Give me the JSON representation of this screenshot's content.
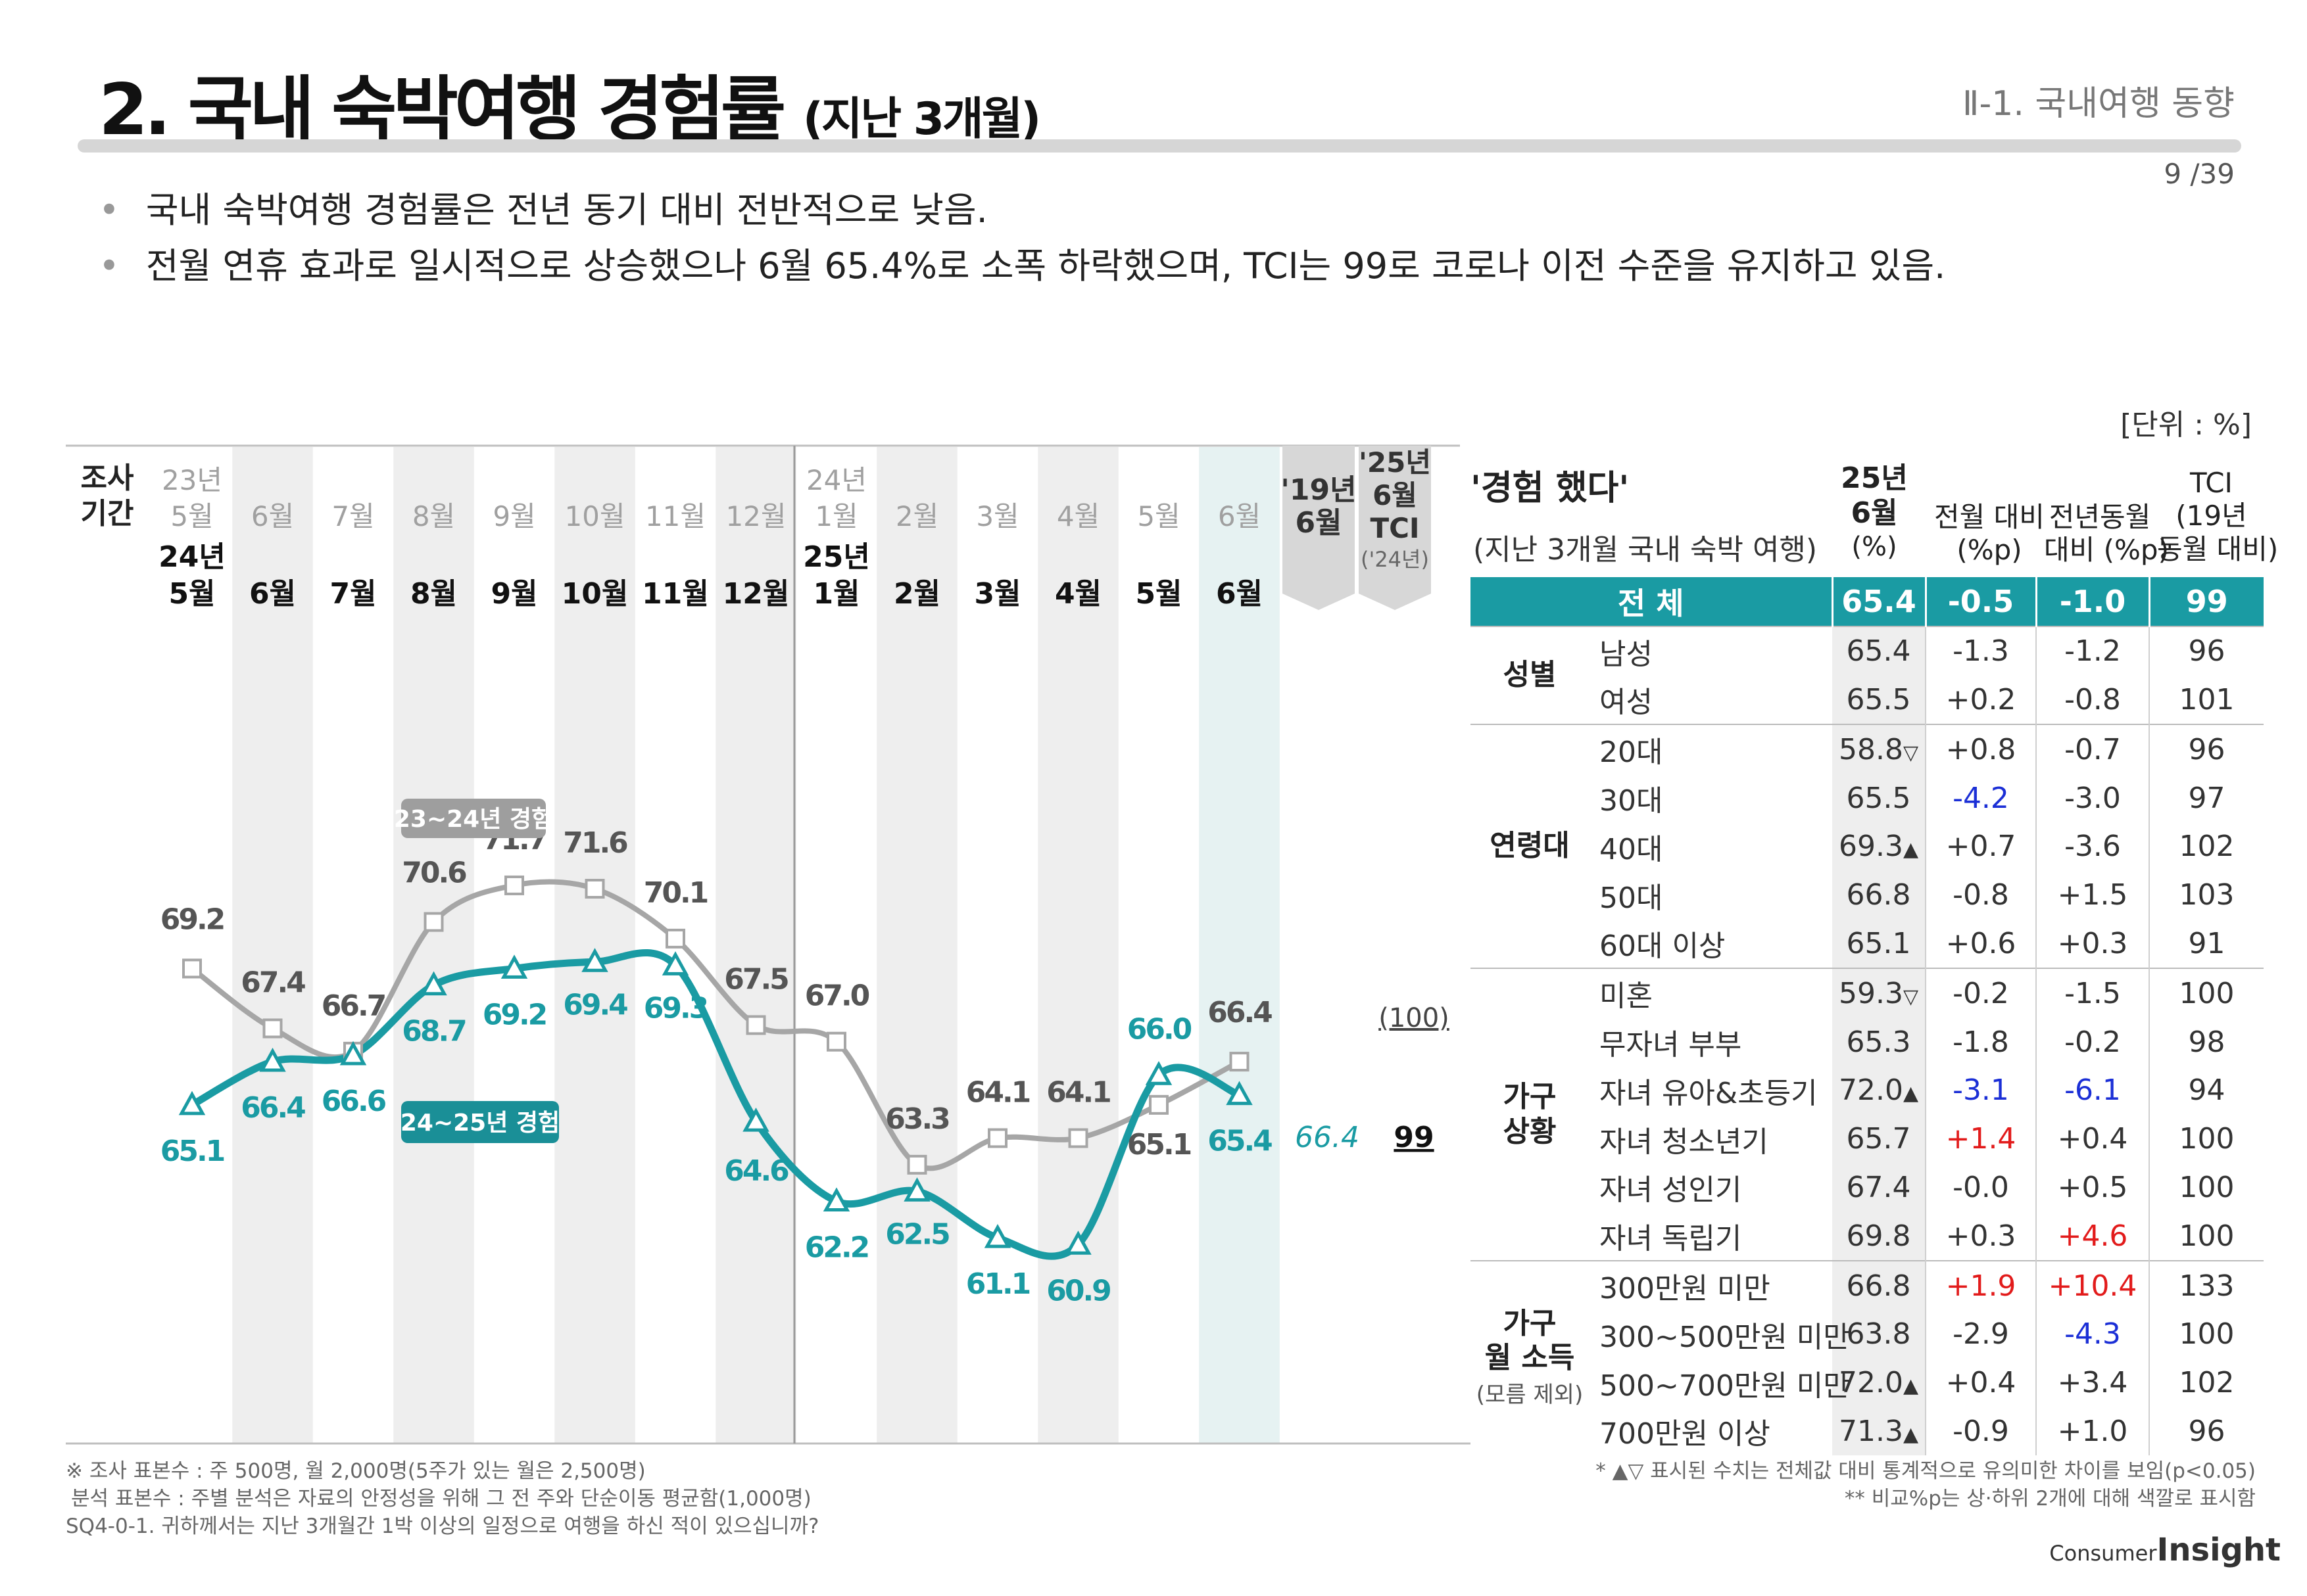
{
  "header": {
    "title": "2. 국내 숙박여행 경험률",
    "title_sub": "(지난 3개월)",
    "section": "Ⅱ-1. 국내여행 동향",
    "page": "9 /39"
  },
  "bullets": [
    "국내 숙박여행 경험률은 전년 동기 대비 전반적으로 낮음.",
    "전월 연휴 효과로 일시적으로 상승했으나 6월 65.4%로 소폭 하락했으며, TCI는 99로 코로나 이전 수준을 유지하고 있음."
  ],
  "unit": "[단위 : %]",
  "axis": {
    "period_label_1": "조사",
    "period_label_2": "기간",
    "prev_year_months": [
      "23년 5월",
      "6월",
      "7월",
      "8월",
      "9월",
      "10월",
      "11월",
      "12월",
      "24년 1월",
      "2월",
      "3월",
      "4월",
      "5월",
      "6월"
    ],
    "curr_year_months": [
      "24년 5월",
      "6월",
      "7월",
      "8월",
      "9월",
      "10월",
      "11월",
      "12월",
      "25년 1월",
      "2월",
      "3월",
      "4월",
      "5월",
      "6월"
    ],
    "ref_col_1": "'19년 6월",
    "ref_col_2": "'25년 6월 TCI",
    "ref_col_2_sub": "('24년)"
  },
  "chart_data": {
    "type": "line",
    "categories": [
      "5월",
      "6월",
      "7월",
      "8월",
      "9월",
      "10월",
      "11월",
      "12월",
      "1월",
      "2월",
      "3월",
      "4월",
      "5월",
      "6월"
    ],
    "series": [
      {
        "name": "23~24년 경험",
        "color": "#a6a6a6",
        "values": [
          69.2,
          67.4,
          66.7,
          70.6,
          71.7,
          71.6,
          70.1,
          67.5,
          67.0,
          63.3,
          64.1,
          64.1,
          65.1,
          66.4
        ]
      },
      {
        "name": "24~25년 경험",
        "color": "#1a9ba3",
        "values": [
          65.1,
          66.4,
          66.6,
          68.7,
          69.2,
          69.4,
          69.3,
          64.6,
          62.2,
          62.5,
          61.1,
          60.9,
          66.0,
          65.4
        ]
      }
    ],
    "ylim": [
      58,
      75
    ],
    "reference": {
      "y19_june": "66.4",
      "tci_base": "(100)",
      "tci_value": "99"
    }
  },
  "table": {
    "title": "'경험 했다'",
    "subtitle": "(지난 3개월 국내 숙박 여행)",
    "headers": {
      "c1": "25년",
      "c1b": "6월",
      "c1c": "(%)",
      "c2": "전월 대비",
      "c2b": "(%p)",
      "c3": "전년동월",
      "c3b": "대비 (%p)",
      "c4": "TCI",
      "c4b": "(19년",
      "c4c": "동월 대비)"
    },
    "total": {
      "label": "전 체",
      "value": "65.4",
      "mom": "-0.5",
      "yoy": "-1.0",
      "tci": "99"
    },
    "groups": {
      "gender": "성별",
      "age": "연령대",
      "household": "가구",
      "household2": "상황",
      "income": "가구",
      "income2": "월 소득",
      "income3": "(모름 제외)"
    },
    "rows": [
      {
        "label": "남성",
        "value": "65.4",
        "mark": "",
        "mom": "-1.3",
        "yoy": "-1.2",
        "tci": "96"
      },
      {
        "label": "여성",
        "value": "65.5",
        "mark": "",
        "mom": "+0.2",
        "yoy": "-0.8",
        "tci": "101"
      },
      {
        "label": "20대",
        "value": "58.8",
        "mark": "▽",
        "mom": "+0.8",
        "yoy": "-0.7",
        "tci": "96"
      },
      {
        "label": "30대",
        "value": "65.5",
        "mark": "",
        "mom": "-4.2",
        "yoy": "-3.0",
        "tci": "97"
      },
      {
        "label": "40대",
        "value": "69.3",
        "mark": "▲",
        "mom": "+0.7",
        "yoy": "-3.6",
        "tci": "102"
      },
      {
        "label": "50대",
        "value": "66.8",
        "mark": "",
        "mom": "-0.8",
        "yoy": "+1.5",
        "tci": "103"
      },
      {
        "label": "60대 이상",
        "value": "65.1",
        "mark": "",
        "mom": "+0.6",
        "yoy": "+0.3",
        "tci": "91"
      },
      {
        "label": "미혼",
        "value": "59.3",
        "mark": "▽",
        "mom": "-0.2",
        "yoy": "-1.5",
        "tci": "100"
      },
      {
        "label": "무자녀 부부",
        "value": "65.3",
        "mark": "",
        "mom": "-1.8",
        "yoy": "-0.2",
        "tci": "98"
      },
      {
        "label": "자녀 유아&초등기",
        "value": "72.0",
        "mark": "▲",
        "mom": "-3.1",
        "yoy": "-6.1",
        "tci": "94"
      },
      {
        "label": "자녀 청소년기",
        "value": "65.7",
        "mark": "",
        "mom": "+1.4",
        "yoy": "+0.4",
        "tci": "100"
      },
      {
        "label": "자녀 성인기",
        "value": "67.4",
        "mark": "",
        "mom": "-0.0",
        "yoy": "+0.5",
        "tci": "100"
      },
      {
        "label": "자녀 독립기",
        "value": "69.8",
        "mark": "",
        "mom": "+0.3",
        "yoy": "+4.6",
        "tci": "100"
      },
      {
        "label": "300만원 미만",
        "value": "66.8",
        "mark": "",
        "mom": "+1.9",
        "yoy": "+10.4",
        "tci": "133"
      },
      {
        "label": "300~500만원 미만",
        "value": "63.8",
        "mark": "",
        "mom": "-2.9",
        "yoy": "-4.3",
        "tci": "100"
      },
      {
        "label": "500~700만원 미만",
        "value": "72.0",
        "mark": "▲",
        "mom": "+0.4",
        "yoy": "+3.4",
        "tci": "102"
      },
      {
        "label": "700만원 이상",
        "value": "71.3",
        "mark": "▲",
        "mom": "-0.9",
        "yoy": "+1.0",
        "tci": "96"
      }
    ]
  },
  "footnotes": {
    "left1": "※ 조사 표본수 : 주 500명, 월 2,000명(5주가 있는 월은 2,500명)",
    "left2": "분석 표본수 : 주별 분석은 자료의 안정성을 위해 그 전 주와 단순이동 평균함(1,000명)",
    "left3": "SQ4-0-1. 귀하께서는 지난 3개월간 1박 이상의 일정으로 여행을 하신 적이 있으십니까?",
    "right1": "* ▲▽ 표시된 수치는 전체값 대비 통계적으로 유의미한 차이를 보임(p<0.05)",
    "right2": "** 비교%p는 상·하위 2개에 대해 색깔로 표시함"
  },
  "logo": {
    "small": "Consumer",
    "big": "Insight"
  }
}
